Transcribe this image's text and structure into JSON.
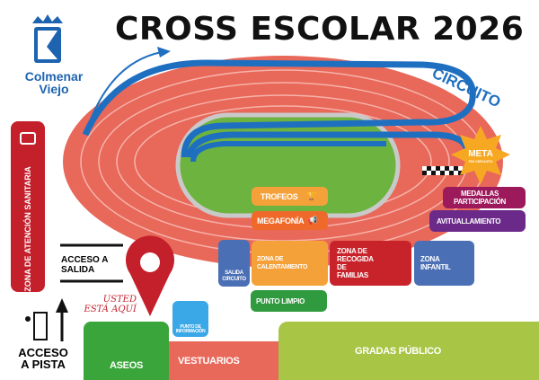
{
  "title": "CROSS ESCOLAR 2026",
  "logo": {
    "line1": "Colmenar",
    "line2": "Viejo"
  },
  "circuit_label": "CIRCUITO",
  "meta": {
    "label": "META",
    "sub": "FIN CIRCUITO"
  },
  "zones": {
    "sanitaria": "ZONA DE ATENCIÓN SANITARIA",
    "trofeos": "TROFEOS",
    "megafonia": "MEGAFONÍA",
    "medallas": "MEDALLAS PARTICIPACIÓN",
    "avituallamiento": "AVITUALLAMIENTO",
    "salida_circuito": "SALIDA CIRCUITO",
    "calentamiento": "ZONA DE CALENTAMIENTO",
    "recogida": "ZONA DE RECOGIDA DE FAMILIAS",
    "infantil": "ZONA INFANTIL",
    "punto_limpio": "PUNTO LIMPIO",
    "punto_info": "PUNTO DE INFORMACIÓN",
    "aseos": "ASEOS",
    "vestuarios": "VESTUARIOS",
    "gradas": "GRADAS PÚBLICO"
  },
  "acceso_salida": "ACCESO A SALIDA",
  "acceso_pista": "ACCESO A PISTA",
  "usted_esta_aqui": "USTED ESTÁ AQUÍ",
  "colors": {
    "track": "#e8685a",
    "field": "#6db33f",
    "circuit": "#1f6fc0",
    "brand": "#1e63b0",
    "red": "#c4202c",
    "orange": "#f5a13a",
    "purple": "#6b2a8a",
    "magenta": "#9c1a5c",
    "green": "#3aa53a",
    "gradas": "#a8c545"
  }
}
